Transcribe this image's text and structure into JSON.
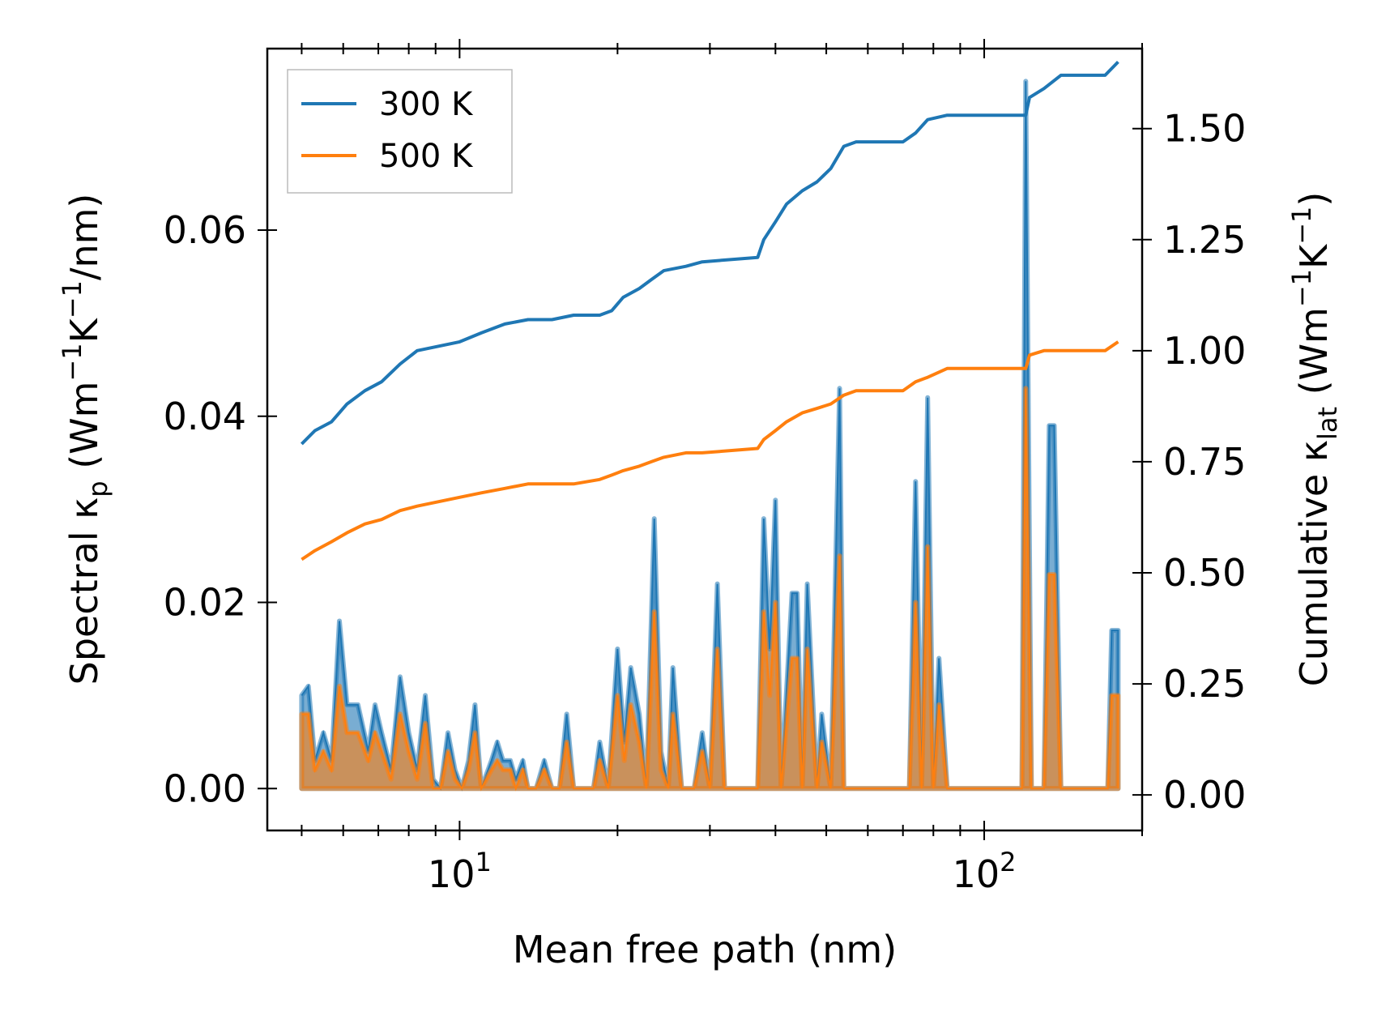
{
  "chart_data": {
    "type": "line",
    "xscale": "log",
    "xlim": [
      4.3,
      200
    ],
    "x_ticks": [
      {
        "base": "10",
        "exp": "1",
        "value": 10
      },
      {
        "base": "10",
        "exp": "2",
        "value": 100
      }
    ],
    "xlabel": "Mean free path (nm)",
    "left_axis": {
      "label_parts": [
        "Spectral κ",
        "p",
        " (Wm",
        "−1",
        "K",
        "−1",
        "/nm)"
      ],
      "ylim": [
        -0.0045,
        0.0795
      ],
      "ticks": [
        {
          "value": 0.0,
          "label": "0.00"
        },
        {
          "value": 0.02,
          "label": "0.02"
        },
        {
          "value": 0.04,
          "label": "0.04"
        },
        {
          "value": 0.06,
          "label": "0.06"
        }
      ]
    },
    "right_axis": {
      "label_parts": [
        "Cumulative κ",
        "lat",
        " (Wm",
        "−1",
        "K",
        "−1",
        ")"
      ],
      "ylim": [
        -0.08,
        1.68
      ],
      "ticks": [
        {
          "value": 0,
          "label": "0.00"
        },
        {
          "value": 0.25,
          "label": "0.25"
        },
        {
          "value": 0.5,
          "label": "0.50"
        },
        {
          "value": 0.75,
          "label": "0.75"
        },
        {
          "value": 1.0,
          "label": "1.00"
        },
        {
          "value": 1.25,
          "label": "1.25"
        },
        {
          "value": 1.5,
          "label": "1.50"
        }
      ]
    },
    "legend": {
      "location": "top-left",
      "entries": [
        {
          "name": "300 K",
          "color": "#1f77b4"
        },
        {
          "name": "500 K",
          "color": "#ff7f0e"
        }
      ]
    },
    "cumulative_series": [
      {
        "name": "300 K",
        "color": "#1f77b4",
        "axis": "right",
        "points": [
          [
            5,
            0.79
          ],
          [
            5.3,
            0.82
          ],
          [
            5.7,
            0.84
          ],
          [
            6.1,
            0.88
          ],
          [
            6.6,
            0.91
          ],
          [
            7.1,
            0.93
          ],
          [
            7.7,
            0.97
          ],
          [
            8.3,
            1.0
          ],
          [
            9.1,
            1.01
          ],
          [
            10,
            1.02
          ],
          [
            11,
            1.04
          ],
          [
            12.2,
            1.06
          ],
          [
            13.5,
            1.07
          ],
          [
            15,
            1.07
          ],
          [
            16.5,
            1.08
          ],
          [
            18.5,
            1.08
          ],
          [
            19.5,
            1.09
          ],
          [
            20.5,
            1.12
          ],
          [
            22,
            1.14
          ],
          [
            23.2,
            1.16
          ],
          [
            24.5,
            1.18
          ],
          [
            27,
            1.19
          ],
          [
            29,
            1.2
          ],
          [
            37,
            1.21
          ],
          [
            38,
            1.25
          ],
          [
            40,
            1.29
          ],
          [
            42,
            1.33
          ],
          [
            45,
            1.36
          ],
          [
            48,
            1.38
          ],
          [
            51,
            1.41
          ],
          [
            54,
            1.46
          ],
          [
            57,
            1.47
          ],
          [
            70,
            1.47
          ],
          [
            74,
            1.49
          ],
          [
            78,
            1.52
          ],
          [
            85,
            1.53
          ],
          [
            120,
            1.53
          ],
          [
            122,
            1.57
          ],
          [
            130,
            1.59
          ],
          [
            140,
            1.62
          ],
          [
            170,
            1.62
          ],
          [
            180,
            1.65
          ]
        ]
      },
      {
        "name": "500 K",
        "color": "#ff7f0e",
        "axis": "right",
        "points": [
          [
            5,
            0.53
          ],
          [
            5.3,
            0.55
          ],
          [
            5.7,
            0.57
          ],
          [
            6.1,
            0.59
          ],
          [
            6.6,
            0.61
          ],
          [
            7.1,
            0.62
          ],
          [
            7.7,
            0.64
          ],
          [
            8.3,
            0.65
          ],
          [
            9.1,
            0.66
          ],
          [
            10,
            0.67
          ],
          [
            11,
            0.68
          ],
          [
            12.2,
            0.69
          ],
          [
            13.5,
            0.7
          ],
          [
            15,
            0.7
          ],
          [
            16.5,
            0.7
          ],
          [
            18.5,
            0.71
          ],
          [
            19.5,
            0.72
          ],
          [
            20.5,
            0.73
          ],
          [
            22,
            0.74
          ],
          [
            23.2,
            0.75
          ],
          [
            24.5,
            0.76
          ],
          [
            27,
            0.77
          ],
          [
            29,
            0.77
          ],
          [
            37,
            0.78
          ],
          [
            38,
            0.8
          ],
          [
            40,
            0.82
          ],
          [
            42,
            0.84
          ],
          [
            45,
            0.86
          ],
          [
            48,
            0.87
          ],
          [
            51,
            0.88
          ],
          [
            54,
            0.9
          ],
          [
            57,
            0.91
          ],
          [
            70,
            0.91
          ],
          [
            74,
            0.93
          ],
          [
            78,
            0.94
          ],
          [
            85,
            0.96
          ],
          [
            120,
            0.96
          ],
          [
            122,
            0.99
          ],
          [
            130,
            1.0
          ],
          [
            140,
            1.0
          ],
          [
            170,
            1.0
          ],
          [
            180,
            1.02
          ]
        ]
      }
    ],
    "spectral_series": [
      {
        "name": "300 K",
        "color": "#1f77b4",
        "axis": "left",
        "points": [
          [
            5,
            0.01
          ],
          [
            5.15,
            0.011
          ],
          [
            5.3,
            0.003
          ],
          [
            5.5,
            0.006
          ],
          [
            5.7,
            0.003
          ],
          [
            5.9,
            0.018
          ],
          [
            6.1,
            0.009
          ],
          [
            6.4,
            0.009
          ],
          [
            6.7,
            0.004
          ],
          [
            6.9,
            0.009
          ],
          [
            7.1,
            0.006
          ],
          [
            7.4,
            0.002
          ],
          [
            7.7,
            0.012
          ],
          [
            8.0,
            0.006
          ],
          [
            8.3,
            0.002
          ],
          [
            8.6,
            0.01
          ],
          [
            8.9,
            0.001
          ],
          [
            9.2,
            0.0
          ],
          [
            9.5,
            0.006
          ],
          [
            9.8,
            0.002
          ],
          [
            10.1,
            0.0
          ],
          [
            10.4,
            0.003
          ],
          [
            10.7,
            0.009
          ],
          [
            11.0,
            0.0
          ],
          [
            11.5,
            0.003
          ],
          [
            11.8,
            0.005
          ],
          [
            12.1,
            0.003
          ],
          [
            12.5,
            0.003
          ],
          [
            12.8,
            0.001
          ],
          [
            13.2,
            0.003
          ],
          [
            13.5,
            0.0
          ],
          [
            14.0,
            0.0
          ],
          [
            14.5,
            0.003
          ],
          [
            15.0,
            0.0
          ],
          [
            15.5,
            0.0
          ],
          [
            16,
            0.008
          ],
          [
            16.5,
            0.0
          ],
          [
            18,
            0.0
          ],
          [
            18.5,
            0.005
          ],
          [
            19.2,
            0.0
          ],
          [
            20,
            0.015
          ],
          [
            20.6,
            0.005
          ],
          [
            21.2,
            0.013
          ],
          [
            22,
            0.008
          ],
          [
            22.7,
            0.0
          ],
          [
            23.5,
            0.029
          ],
          [
            24.2,
            0.004
          ],
          [
            25,
            0.0
          ],
          [
            25.5,
            0.013
          ],
          [
            26.5,
            0.0
          ],
          [
            28,
            0.0
          ],
          [
            29,
            0.006
          ],
          [
            30,
            0.0
          ],
          [
            31,
            0.022
          ],
          [
            32,
            0.0
          ],
          [
            37,
            0.0
          ],
          [
            38,
            0.029
          ],
          [
            39,
            0.015
          ],
          [
            40,
            0.031
          ],
          [
            41,
            0.0
          ],
          [
            43,
            0.021
          ],
          [
            44,
            0.021
          ],
          [
            45,
            0.0
          ],
          [
            46,
            0.022
          ],
          [
            48,
            0.0
          ],
          [
            49,
            0.008
          ],
          [
            51,
            0.0
          ],
          [
            53,
            0.043
          ],
          [
            54,
            0.0
          ],
          [
            72,
            0.0
          ],
          [
            74,
            0.033
          ],
          [
            76,
            0.0
          ],
          [
            78,
            0.042
          ],
          [
            80,
            0.0
          ],
          [
            82,
            0.014
          ],
          [
            85,
            0.0
          ],
          [
            118,
            0.0
          ],
          [
            120,
            0.076
          ],
          [
            123,
            0.0
          ],
          [
            130,
            0.0
          ],
          [
            133,
            0.039
          ],
          [
            136,
            0.039
          ],
          [
            140,
            0.0
          ],
          [
            172,
            0.0
          ],
          [
            175,
            0.017
          ],
          [
            180,
            0.017
          ],
          [
            180,
            0.0
          ]
        ]
      },
      {
        "name": "500 K",
        "color": "#ff7f0e",
        "axis": "left",
        "points": [
          [
            5,
            0.008
          ],
          [
            5.15,
            0.008
          ],
          [
            5.3,
            0.002
          ],
          [
            5.5,
            0.004
          ],
          [
            5.7,
            0.002
          ],
          [
            5.9,
            0.011
          ],
          [
            6.1,
            0.006
          ],
          [
            6.4,
            0.006
          ],
          [
            6.7,
            0.003
          ],
          [
            6.9,
            0.006
          ],
          [
            7.1,
            0.004
          ],
          [
            7.4,
            0.001
          ],
          [
            7.7,
            0.008
          ],
          [
            8.0,
            0.004
          ],
          [
            8.3,
            0.001
          ],
          [
            8.6,
            0.007
          ],
          [
            8.9,
            0.0
          ],
          [
            9.2,
            0.0
          ],
          [
            9.5,
            0.004
          ],
          [
            9.8,
            0.001
          ],
          [
            10.1,
            0.0
          ],
          [
            10.4,
            0.002
          ],
          [
            10.7,
            0.006
          ],
          [
            11.0,
            0.0
          ],
          [
            11.5,
            0.002
          ],
          [
            11.8,
            0.003
          ],
          [
            12.1,
            0.002
          ],
          [
            12.5,
            0.002
          ],
          [
            12.8,
            0.0
          ],
          [
            13.2,
            0.002
          ],
          [
            13.5,
            0.0
          ],
          [
            14.0,
            0.0
          ],
          [
            14.5,
            0.002
          ],
          [
            15.0,
            0.0
          ],
          [
            15.5,
            0.0
          ],
          [
            16,
            0.005
          ],
          [
            16.5,
            0.0
          ],
          [
            18,
            0.0
          ],
          [
            18.5,
            0.003
          ],
          [
            19.2,
            0.0
          ],
          [
            20,
            0.01
          ],
          [
            20.6,
            0.003
          ],
          [
            21.2,
            0.009
          ],
          [
            22,
            0.005
          ],
          [
            22.7,
            0.0
          ],
          [
            23.5,
            0.019
          ],
          [
            24.2,
            0.002
          ],
          [
            25,
            0.0
          ],
          [
            25.5,
            0.008
          ],
          [
            26.5,
            0.0
          ],
          [
            28,
            0.0
          ],
          [
            29,
            0.004
          ],
          [
            30,
            0.0
          ],
          [
            31,
            0.015
          ],
          [
            32,
            0.0
          ],
          [
            37,
            0.0
          ],
          [
            38,
            0.019
          ],
          [
            39,
            0.01
          ],
          [
            40,
            0.02
          ],
          [
            41,
            0.0
          ],
          [
            43,
            0.014
          ],
          [
            44,
            0.014
          ],
          [
            45,
            0.0
          ],
          [
            46,
            0.015
          ],
          [
            48,
            0.0
          ],
          [
            49,
            0.005
          ],
          [
            51,
            0.0
          ],
          [
            53,
            0.025
          ],
          [
            54,
            0.0
          ],
          [
            72,
            0.0
          ],
          [
            74,
            0.02
          ],
          [
            76,
            0.0
          ],
          [
            78,
            0.026
          ],
          [
            80,
            0.0
          ],
          [
            82,
            0.009
          ],
          [
            85,
            0.0
          ],
          [
            118,
            0.0
          ],
          [
            120,
            0.043
          ],
          [
            123,
            0.0
          ],
          [
            130,
            0.0
          ],
          [
            133,
            0.023
          ],
          [
            136,
            0.023
          ],
          [
            140,
            0.0
          ],
          [
            172,
            0.0
          ],
          [
            175,
            0.01
          ],
          [
            180,
            0.01
          ],
          [
            180,
            0.0
          ]
        ]
      }
    ]
  }
}
